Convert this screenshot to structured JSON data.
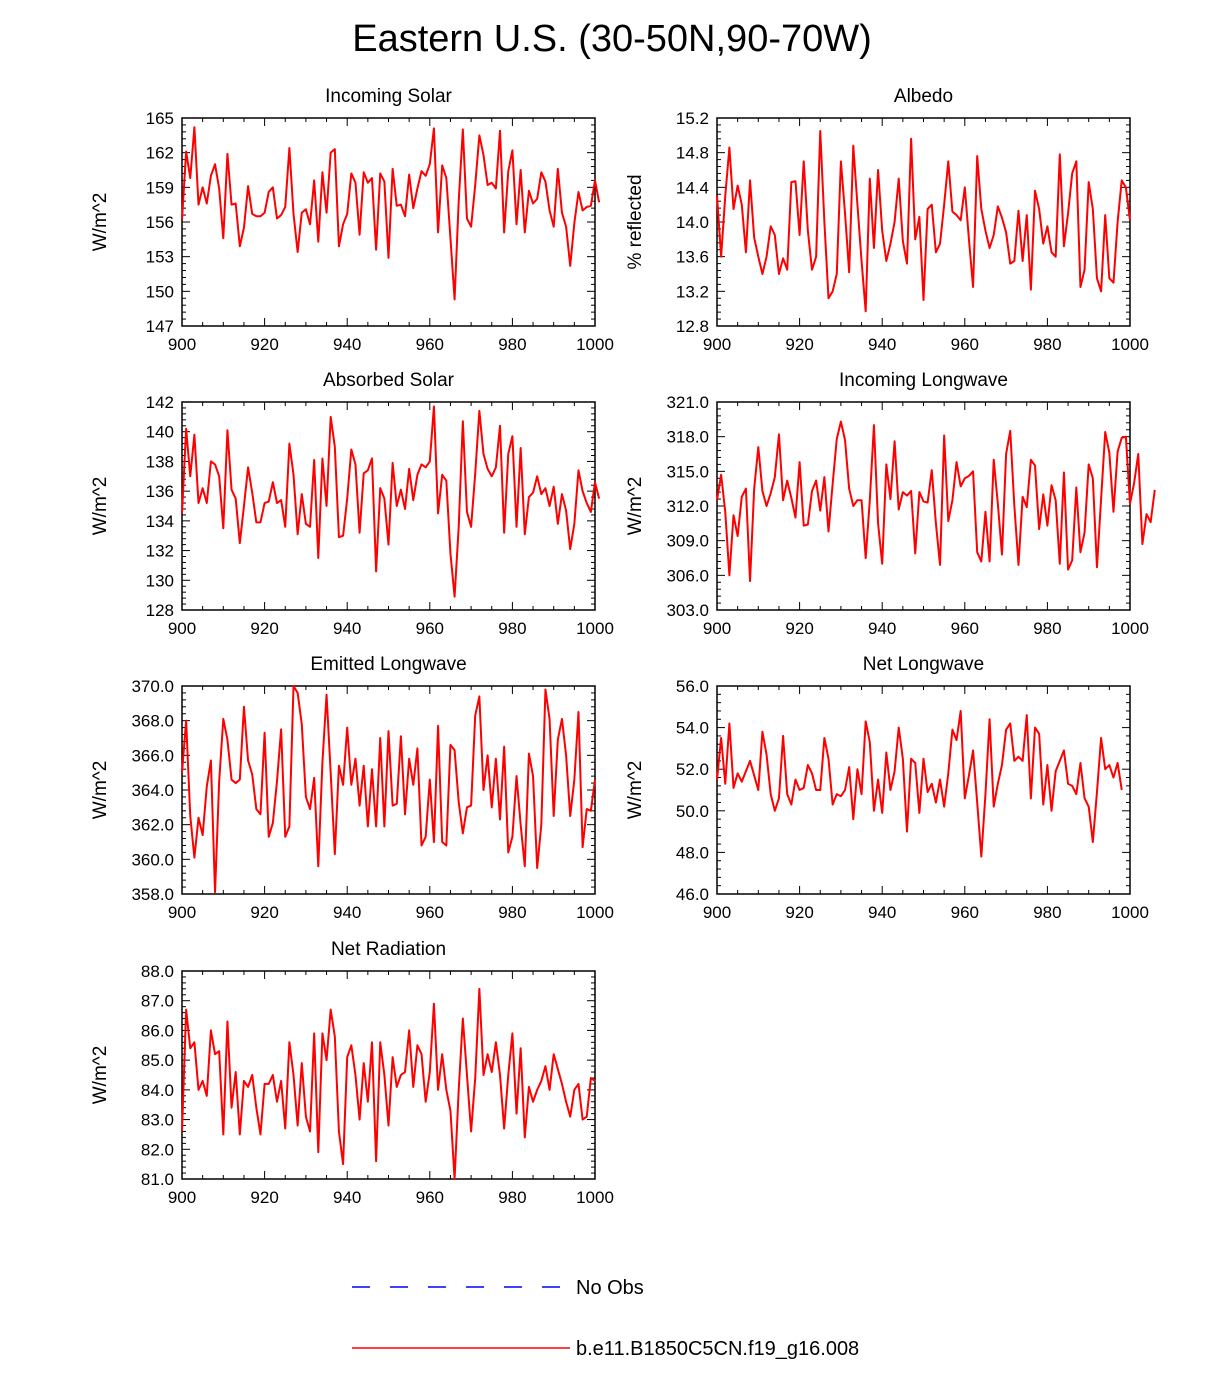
{
  "title": "Eastern U.S. (30-50N,90-70W)",
  "colors": {
    "model": "#ff0000",
    "obs": "#0000ff",
    "axis": "#000000"
  },
  "legend": [
    {
      "label": "No Obs",
      "color": "#0000ff",
      "style": "dashed"
    },
    {
      "label": "b.e11.B1850C5CN.f19_g16.008",
      "color": "#ff0000",
      "style": "solid"
    }
  ],
  "chart_data": [
    {
      "type": "line",
      "title": "Incoming Solar",
      "ylabel": "W/m^2",
      "xlim": [
        900,
        1000
      ],
      "ylim": [
        147,
        165
      ],
      "xticks": [
        "900",
        "920",
        "940",
        "960",
        "980",
        "1000"
      ],
      "yticks": [
        "147",
        "150",
        "153",
        "156",
        "159",
        "162",
        "165"
      ],
      "x_start": 900,
      "x_step": 1,
      "series": [
        {
          "name": "b.e11.B1850C5CN.f19_g16.008",
          "values": [
            156.2,
            162.1,
            159.8,
            164.2,
            157.5,
            159.0,
            157.6,
            160.0,
            161.0,
            158.9,
            154.6,
            161.9,
            157.5,
            157.6,
            153.9,
            155.5,
            159.1,
            156.7,
            156.5,
            156.5,
            156.8,
            158.6,
            159.0,
            156.3,
            156.6,
            157.3,
            162.4,
            156.7,
            153.4,
            156.8,
            157.1,
            155.8,
            159.6,
            154.3,
            160.3,
            156.8,
            162.0,
            162.3,
            153.9,
            155.8,
            156.7,
            160.2,
            159.4,
            154.9,
            160.3,
            159.4,
            159.8,
            153.6,
            160.2,
            159.5,
            152.9,
            160.6,
            157.4,
            157.5,
            156.5,
            160.1,
            157.2,
            158.9,
            160.4,
            160.0,
            161.0,
            164.1,
            155.1,
            160.9,
            159.8,
            154.6,
            149.3,
            157.8,
            164.0,
            156.3,
            155.6,
            159.2,
            163.5,
            161.8,
            159.2,
            159.4,
            158.9,
            163.9,
            155.1,
            160.4,
            162.2,
            155.8,
            160.5,
            155.1,
            158.7,
            157.6,
            158.0,
            160.3,
            159.5,
            157.0,
            155.6,
            160.6,
            156.8,
            155.6,
            152.2,
            155.9,
            158.6,
            157.0,
            157.3,
            157.4,
            159.6,
            157.7
          ]
        }
      ]
    },
    {
      "type": "line",
      "title": "Albedo",
      "ylabel": "% reflected",
      "xlim": [
        900,
        1000
      ],
      "ylim": [
        12.8,
        15.2
      ],
      "xticks": [
        "900",
        "920",
        "940",
        "960",
        "980",
        "1000"
      ],
      "yticks": [
        "12.8",
        "13.2",
        "13.6",
        "14.0",
        "14.4",
        "14.8",
        "15.2"
      ],
      "x_start": 900,
      "x_step": 1,
      "series": [
        {
          "name": "b.e11.B1850C5CN.f19_g16.008",
          "values": [
            14.3,
            13.6,
            14.3,
            14.86,
            14.15,
            14.42,
            14.2,
            13.65,
            14.48,
            13.82,
            13.6,
            13.4,
            13.6,
            13.95,
            13.85,
            13.4,
            13.58,
            13.45,
            14.46,
            14.47,
            13.85,
            14.7,
            13.9,
            13.45,
            13.6,
            15.05,
            14.0,
            13.12,
            13.2,
            13.4,
            14.7,
            14.1,
            13.42,
            14.88,
            14.2,
            13.55,
            12.97,
            14.5,
            13.7,
            14.6,
            13.9,
            13.55,
            13.75,
            14.0,
            14.5,
            13.78,
            13.52,
            14.96,
            13.8,
            14.06,
            13.1,
            14.15,
            14.2,
            13.65,
            13.75,
            14.2,
            14.7,
            14.12,
            14.08,
            14.02,
            14.4,
            13.8,
            13.25,
            14.76,
            14.15,
            13.9,
            13.7,
            13.85,
            14.18,
            14.05,
            13.88,
            13.52,
            13.55,
            14.13,
            13.55,
            14.08,
            13.22,
            14.36,
            14.15,
            13.75,
            13.95,
            13.65,
            13.6,
            14.78,
            13.72,
            14.1,
            14.56,
            14.7,
            13.25,
            13.45,
            14.46,
            14.15,
            13.35,
            13.2,
            14.08,
            13.35,
            13.3,
            14.0,
            14.48,
            14.4,
            14.02
          ]
        }
      ]
    },
    {
      "type": "line",
      "title": "Absorbed Solar",
      "ylabel": "W/m^2",
      "xlim": [
        900,
        1000
      ],
      "ylim": [
        128,
        142
      ],
      "xticks": [
        "900",
        "920",
        "940",
        "960",
        "980",
        "1000"
      ],
      "yticks": [
        "128",
        "130",
        "132",
        "134",
        "136",
        "138",
        "140",
        "142"
      ],
      "x_start": 900,
      "x_step": 1,
      "series": [
        {
          "name": "b.e11.B1850C5CN.f19_g16.008",
          "values": [
            134.5,
            140.2,
            137.0,
            139.8,
            135.2,
            136.2,
            135.2,
            138.0,
            137.8,
            137.0,
            133.5,
            140.1,
            136.1,
            135.5,
            132.5,
            135.0,
            137.6,
            135.9,
            133.9,
            133.9,
            135.2,
            135.3,
            136.6,
            135.2,
            135.4,
            133.6,
            139.2,
            137.1,
            133.1,
            135.8,
            133.8,
            133.6,
            138.1,
            131.5,
            138.2,
            135.0,
            141.0,
            139.0,
            132.9,
            133.0,
            135.5,
            138.8,
            137.8,
            133.2,
            137.2,
            137.4,
            138.2,
            130.6,
            136.2,
            135.5,
            132.4,
            137.9,
            135.0,
            136.1,
            134.8,
            137.5,
            135.4,
            137.1,
            137.8,
            137.6,
            138.0,
            141.7,
            134.5,
            137.1,
            136.7,
            131.8,
            128.9,
            133.6,
            140.7,
            134.6,
            133.6,
            137.2,
            141.4,
            138.5,
            137.5,
            137.0,
            137.6,
            140.4,
            133.2,
            138.5,
            139.7,
            133.6,
            138.9,
            133.1,
            135.6,
            135.9,
            137.0,
            135.8,
            136.2,
            135.0,
            136.3,
            133.8,
            135.8,
            134.7,
            132.1,
            133.8,
            137.4,
            136.0,
            135.2,
            134.6,
            136.6,
            135.5
          ]
        }
      ]
    },
    {
      "type": "line",
      "title": "Incoming Longwave",
      "ylabel": "W/m^2",
      "xlim": [
        900,
        1000
      ],
      "ylim": [
        303.0,
        321.0
      ],
      "xticks": [
        "900",
        "920",
        "940",
        "960",
        "980",
        "1000"
      ],
      "yticks": [
        "303.0",
        "306.0",
        "309.0",
        "312.0",
        "315.0",
        "318.0",
        "321.0"
      ],
      "x_start": 900,
      "x_step": 1,
      "series": [
        {
          "name": "b.e11.B1850C5CN.f19_g16.008",
          "values": [
            312.5,
            314.7,
            311.5,
            306.0,
            311.2,
            309.4,
            312.8,
            313.5,
            305.5,
            313.5,
            317.1,
            313.3,
            312.0,
            313.1,
            314.5,
            318.2,
            312.5,
            314.2,
            312.7,
            311.0,
            315.8,
            310.3,
            310.4,
            313.3,
            314.2,
            311.6,
            314.5,
            309.8,
            313.9,
            317.8,
            319.3,
            317.7,
            313.5,
            312.0,
            312.5,
            312.5,
            307.5,
            312.5,
            319.0,
            310.5,
            307.0,
            315.6,
            312.6,
            317.6,
            311.7,
            313.2,
            312.9,
            313.3,
            307.9,
            313.2,
            312.4,
            312.3,
            315.1,
            310.5,
            306.9,
            318.1,
            310.7,
            312.5,
            315.8,
            313.7,
            314.4,
            314.6,
            315.0,
            308.0,
            307.2,
            311.5,
            307.2,
            316.0,
            312.2,
            307.8,
            316.5,
            318.5,
            312.0,
            306.9,
            312.8,
            311.9,
            316.0,
            315.5,
            310.0,
            313.0,
            310.3,
            313.8,
            312.5,
            307.0,
            314.9,
            306.5,
            307.3,
            313.6,
            308.0,
            309.7,
            315.6,
            314.4,
            306.7,
            312.6,
            318.4,
            316.6,
            311.5,
            316.7,
            317.9,
            318.0,
            312.2,
            314.0,
            316.5,
            308.7,
            311.3,
            310.6,
            313.4
          ]
        }
      ]
    },
    {
      "type": "line",
      "title": "Emitted Longwave",
      "ylabel": "W/m^2",
      "xlim": [
        900,
        1000
      ],
      "ylim": [
        358.0,
        370.0
      ],
      "xticks": [
        "900",
        "920",
        "940",
        "960",
        "980",
        "1000"
      ],
      "yticks": [
        "358.0",
        "360.0",
        "362.0",
        "364.0",
        "366.0",
        "368.0",
        "370.0"
      ],
      "x_start": 900,
      "x_step": 1,
      "series": [
        {
          "name": "b.e11.B1850C5CN.f19_g16.008",
          "values": [
            365.0,
            368.0,
            362.5,
            360.1,
            362.4,
            361.4,
            364.2,
            365.7,
            358.1,
            364.5,
            368.1,
            366.9,
            364.6,
            364.4,
            364.6,
            368.8,
            365.7,
            364.9,
            362.9,
            362.6,
            367.3,
            361.3,
            362.1,
            364.5,
            367.5,
            361.3,
            361.9,
            370.0,
            369.6,
            367.8,
            363.6,
            362.9,
            364.7,
            359.6,
            365.6,
            369.5,
            365.0,
            360.3,
            365.4,
            364.3,
            367.6,
            364.3,
            365.8,
            363.1,
            365.4,
            361.9,
            365.2,
            361.9,
            367.0,
            361.9,
            367.4,
            363.1,
            363.2,
            367.1,
            362.6,
            365.8,
            364.3,
            366.4,
            360.8,
            361.3,
            364.6,
            361.0,
            367.7,
            361.0,
            360.8,
            366.6,
            366.3,
            363.3,
            361.5,
            363.0,
            363.1,
            368.3,
            369.4,
            364.0,
            366.0,
            363.0,
            365.8,
            362.3,
            366.5,
            360.4,
            361.3,
            364.8,
            362.0,
            359.6,
            366.1,
            364.8,
            359.5,
            362.0,
            369.8,
            368.1,
            362.5,
            366.9,
            368.1,
            366.0,
            362.5,
            364.6,
            368.5,
            360.7,
            362.9,
            362.8,
            364.6
          ]
        }
      ]
    },
    {
      "type": "line",
      "title": "Net Longwave",
      "ylabel": "W/m^2",
      "xlim": [
        900,
        1000
      ],
      "ylim": [
        46.0,
        56.0
      ],
      "xticks": [
        "900",
        "920",
        "940",
        "960",
        "980",
        "1000"
      ],
      "yticks": [
        "46.0",
        "48.0",
        "50.0",
        "52.0",
        "54.0",
        "56.0"
      ],
      "x_start": 900,
      "x_step": 1,
      "series": [
        {
          "name": "b.e11.B1850C5CN.f19_g16.008",
          "values": [
            51.5,
            53.5,
            51.3,
            54.2,
            51.1,
            51.8,
            51.4,
            51.9,
            52.4,
            51.7,
            51.0,
            53.8,
            52.7,
            50.8,
            50.0,
            50.6,
            53.6,
            50.8,
            50.3,
            51.5,
            51.0,
            51.1,
            52.2,
            51.8,
            51.0,
            51.0,
            53.5,
            52.5,
            50.3,
            50.8,
            50.7,
            51.0,
            52.1,
            49.6,
            52.0,
            50.8,
            54.3,
            53.3,
            50.0,
            51.5,
            49.9,
            52.8,
            51.0,
            51.9,
            54.0,
            52.5,
            49.0,
            52.5,
            52.3,
            49.9,
            52.5,
            50.9,
            51.3,
            50.4,
            51.5,
            50.2,
            51.8,
            53.9,
            53.4,
            54.8,
            50.6,
            51.7,
            52.9,
            50.4,
            47.8,
            50.8,
            54.4,
            50.2,
            51.3,
            52.2,
            53.9,
            54.2,
            52.4,
            52.6,
            52.4,
            54.6,
            50.6,
            54.0,
            53.7,
            50.3,
            52.2,
            50.0,
            51.9,
            52.4,
            52.9,
            51.3,
            51.2,
            50.8,
            52.3,
            50.6,
            50.2,
            48.5,
            50.9,
            53.5,
            52.0,
            52.2,
            51.6,
            52.3,
            51.0
          ]
        }
      ]
    },
    {
      "type": "line",
      "title": "Net Radiation",
      "ylabel": "W/m^2",
      "xlim": [
        900,
        1000
      ],
      "ylim": [
        81.0,
        88.0
      ],
      "xticks": [
        "900",
        "920",
        "940",
        "960",
        "980",
        "1000"
      ],
      "yticks": [
        "81.0",
        "82.0",
        "83.0",
        "84.0",
        "85.0",
        "86.0",
        "87.0",
        "88.0"
      ],
      "x_start": 900,
      "x_step": 1,
      "series": [
        {
          "name": "b.e11.B1850C5CN.f19_g16.008",
          "values": [
            82.6,
            86.7,
            85.4,
            85.6,
            84.0,
            84.3,
            83.8,
            86.0,
            85.2,
            85.3,
            82.5,
            86.3,
            83.4,
            84.6,
            82.5,
            84.3,
            84.1,
            84.5,
            83.4,
            82.5,
            84.2,
            84.2,
            84.5,
            83.6,
            84.3,
            82.7,
            85.6,
            84.5,
            82.8,
            84.9,
            83.1,
            82.6,
            85.9,
            81.9,
            85.9,
            85.0,
            86.7,
            85.8,
            82.6,
            81.5,
            85.1,
            85.5,
            84.5,
            83.0,
            84.9,
            83.6,
            85.6,
            81.6,
            85.6,
            84.5,
            82.8,
            85.1,
            84.1,
            84.5,
            84.6,
            86.0,
            84.1,
            85.5,
            85.2,
            83.6,
            84.6,
            86.9,
            84.0,
            85.2,
            84.0,
            83.3,
            81.0,
            84.0,
            86.4,
            84.5,
            82.6,
            84.4,
            87.4,
            84.5,
            85.2,
            84.6,
            85.6,
            84.5,
            82.7,
            84.5,
            85.9,
            83.2,
            85.4,
            82.4,
            84.1,
            83.6,
            84.0,
            84.3,
            84.8,
            84.0,
            85.2,
            84.7,
            84.2,
            83.6,
            83.1,
            84.0,
            84.2,
            83.0,
            83.1,
            84.4,
            84.3
          ]
        }
      ]
    }
  ]
}
